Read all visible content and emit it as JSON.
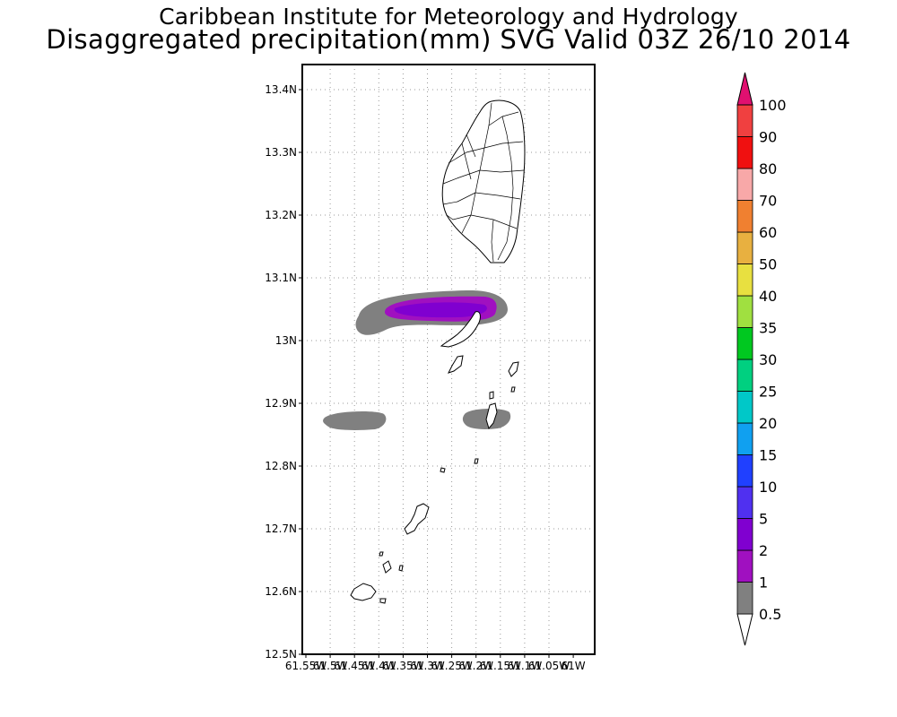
{
  "title": {
    "line1": "Caribbean Institute for Meteorology and Hydrology",
    "line2": "Disaggregated precipitation(mm) SVG Valid 03Z 26/10 2014"
  },
  "axes": {
    "y_ticks": [
      "13.4N",
      "13.3N",
      "13.2N",
      "13.1N",
      "13N",
      "12.9N",
      "12.8N",
      "12.7N",
      "12.6N",
      "12.5N"
    ],
    "x_ticks": [
      "61.55W",
      "61.5W",
      "61.45W",
      "61.4W",
      "61.35W",
      "61.3W",
      "61.25W",
      "61.2W",
      "61.15W",
      "61.1W",
      "61.05W",
      "61W"
    ]
  },
  "legend": {
    "levels": [
      "0.5",
      "1",
      "2",
      "5",
      "10",
      "15",
      "20",
      "25",
      "30",
      "35",
      "40",
      "50",
      "60",
      "70",
      "80",
      "90",
      "100"
    ],
    "colors": [
      "#808080",
      "#a010c0",
      "#8000d0",
      "#5030f0",
      "#2040ff",
      "#10a0f0",
      "#00c8c8",
      "#00d080",
      "#00c820",
      "#a0e040",
      "#e8e040",
      "#e8b040",
      "#f08030",
      "#f8a8a8",
      "#f01010",
      "#f04040",
      "#e01070"
    ]
  },
  "colors": {
    "precip_low": "#808080",
    "precip_mid": "#a010c0",
    "precip_core": "#8000d0",
    "coast": "#000000"
  }
}
